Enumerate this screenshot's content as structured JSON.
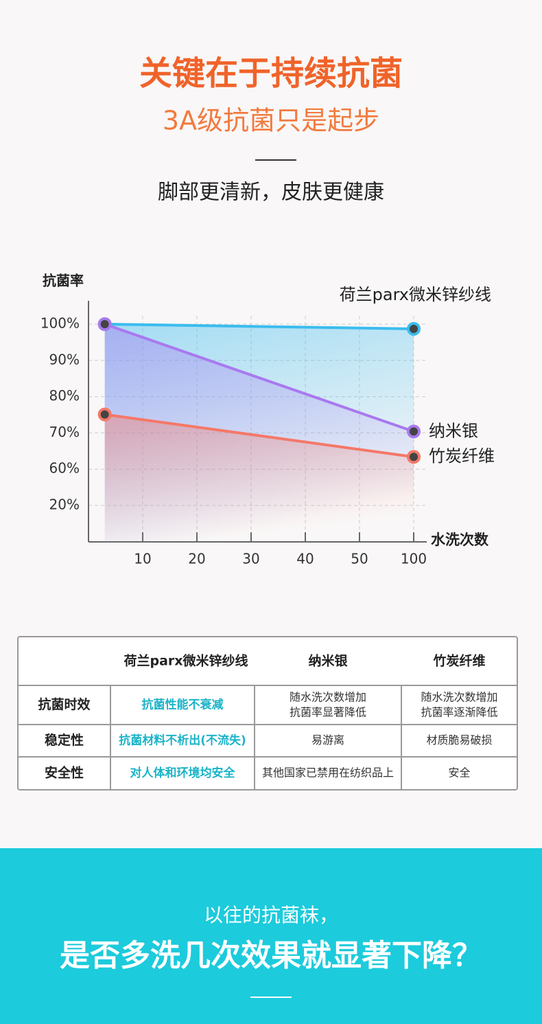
{
  "header": {
    "title": "关键在于持续抗菌",
    "subtitle": "3A级抗菌只是起步",
    "tagline": "脚部更清新，皮肤更健康"
  },
  "chart_data": {
    "type": "line",
    "ylabel": "抗菌率",
    "xlabel": "水洗次数",
    "x": [
      3,
      100
    ],
    "series": [
      {
        "name": "荷兰parx微米锌纱线",
        "color": "#3bbcee",
        "values": [
          100,
          98.7
        ]
      },
      {
        "name": "纳米银",
        "color": "#a979ef",
        "values": [
          100,
          70.4
        ]
      },
      {
        "name": "竹炭纤维",
        "color": "#f47868",
        "values": [
          75.1,
          63.4
        ]
      }
    ],
    "xlim": [
      0,
      100
    ],
    "xticks": [
      10,
      20,
      30,
      40,
      50,
      100
    ],
    "ylim": [
      0,
      100
    ],
    "yticks": [
      {
        "value": 20,
        "label": "20%"
      },
      {
        "value": 60,
        "label": "60%"
      },
      {
        "value": 70,
        "label": "70%"
      },
      {
        "value": 80,
        "label": "80%"
      },
      {
        "value": 90,
        "label": "90%"
      },
      {
        "value": 100,
        "label": "100%"
      }
    ],
    "grid": true
  },
  "table": {
    "header": [
      "荷兰parx微米锌纱线",
      "纳米银",
      "竹炭纤维"
    ],
    "rows": [
      [
        "抗菌时效",
        "抗菌性能不衰减",
        "随水洗次数增加\n抗菌率显著降低",
        "随水洗次数增加\n抗菌率逐渐降低"
      ],
      [
        "稳定性",
        "抗菌材料不析出(不流失)",
        "易游离",
        "材质脆易破损"
      ],
      [
        "安全性",
        "对人体和环境均安全",
        "其他国家已禁用在纺织品上",
        "安全"
      ]
    ]
  },
  "footer": {
    "line1": "以往的抗菌袜，",
    "line2": "是否多洗几次效果就显著下降？"
  }
}
